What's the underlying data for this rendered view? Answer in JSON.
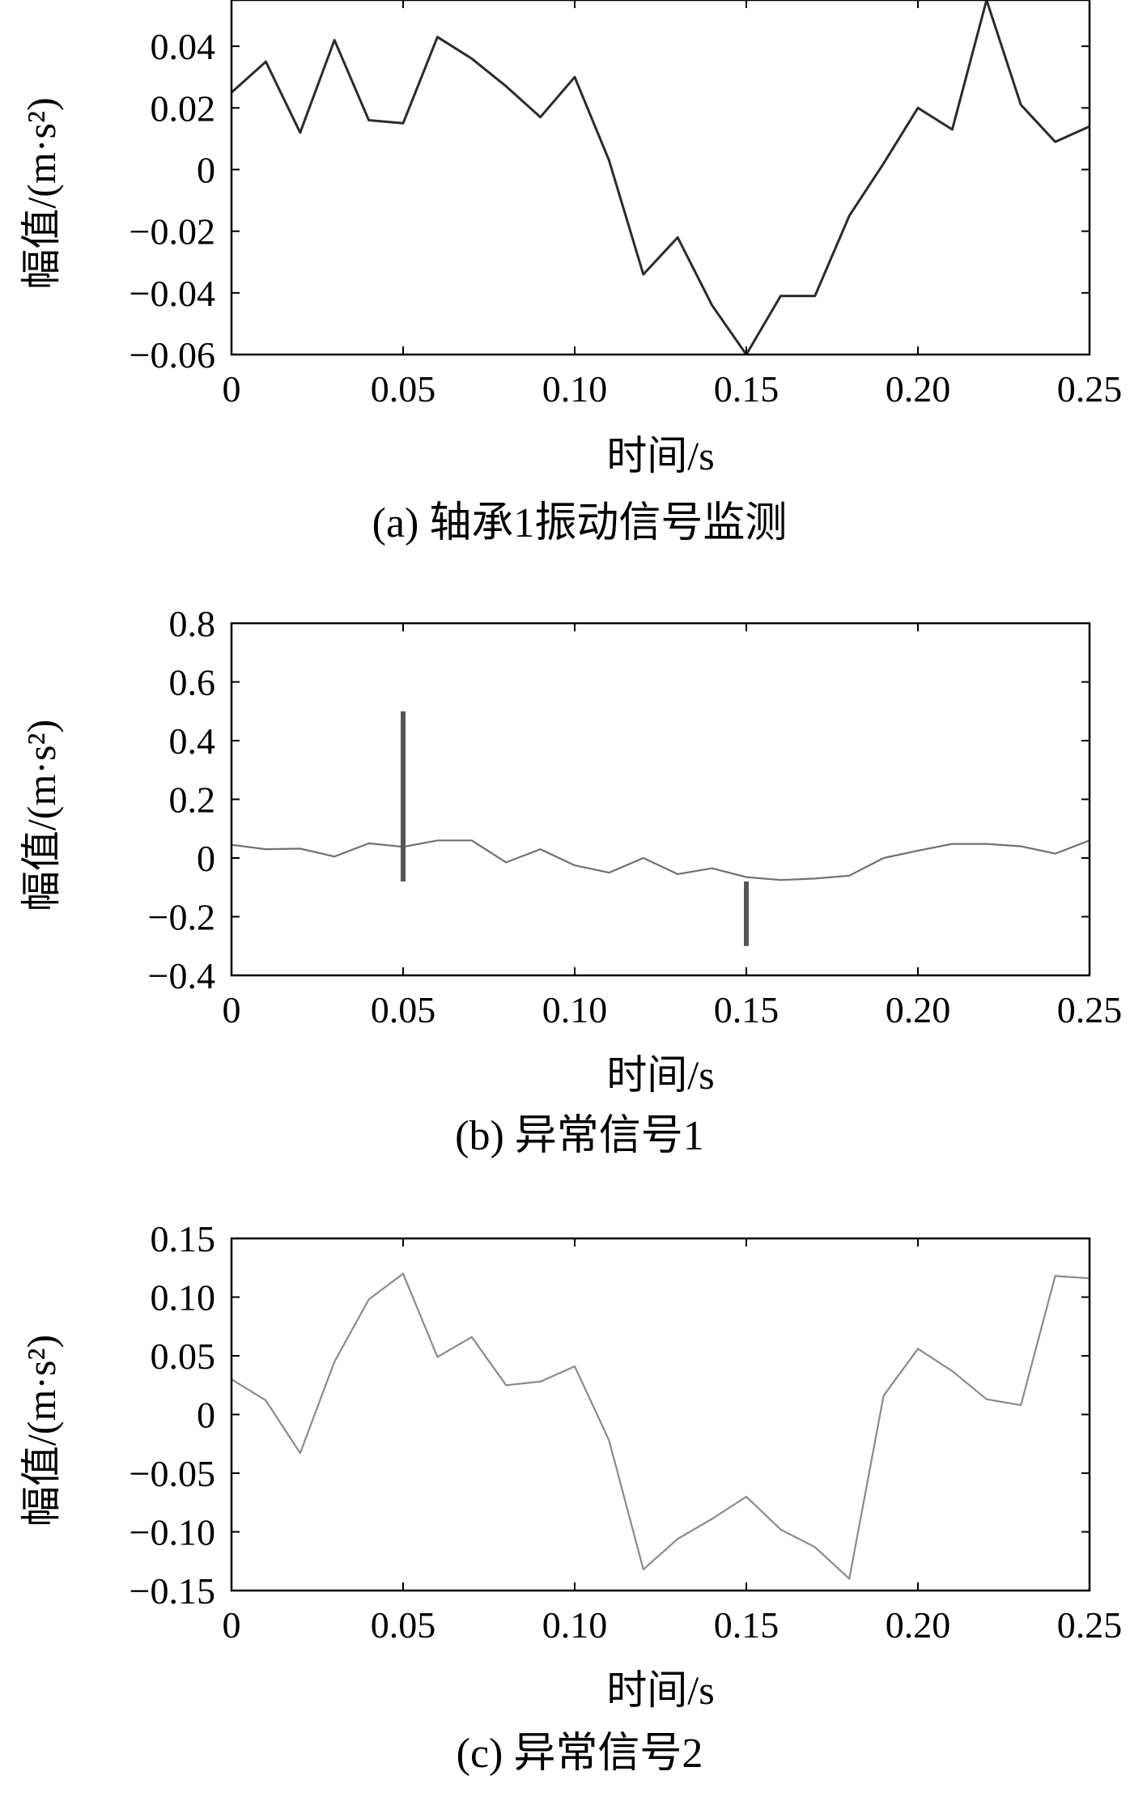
{
  "chart_data": [
    {
      "type": "line",
      "caption": "(a) 轴承1振动信号监测",
      "xlabel": "时间/s",
      "ylabel": "幅值/(m·s²)",
      "xlim": [
        0,
        0.25
      ],
      "ylim": [
        -0.06,
        0.055
      ],
      "xticks": [
        "0",
        "0.05",
        "0.10",
        "0.15",
        "0.20",
        "0.25"
      ],
      "xtick_values": [
        0,
        0.05,
        0.1,
        0.15,
        0.2,
        0.25
      ],
      "yticks": [
        "−0.06",
        "−0.04",
        "−0.02",
        "0",
        "0.02",
        "0.04"
      ],
      "ytick_values": [
        -0.06,
        -0.04,
        -0.02,
        0,
        0.02,
        0.04
      ],
      "grid": false,
      "series": [
        {
          "color": "#2b2b2b",
          "x": [
            0,
            0.01,
            0.02,
            0.03,
            0.04,
            0.05,
            0.06,
            0.07,
            0.08,
            0.09,
            0.1,
            0.11,
            0.12,
            0.13,
            0.14,
            0.15,
            0.16,
            0.17,
            0.18,
            0.19,
            0.2,
            0.21,
            0.22,
            0.23,
            0.24,
            0.25
          ],
          "y": [
            0.025,
            0.035,
            0.012,
            0.042,
            0.016,
            0.015,
            0.043,
            0.036,
            0.027,
            0.017,
            0.03,
            0.003,
            -0.034,
            -0.022,
            -0.044,
            -0.06,
            -0.041,
            -0.041,
            -0.015,
            0.002,
            0.02,
            0.013,
            0.055,
            0.021,
            0.009,
            0.014
          ]
        }
      ]
    },
    {
      "type": "line",
      "caption": "(b) 异常信号1",
      "xlabel": "时间/s",
      "ylabel": "幅值/(m·s²)",
      "xlim": [
        0,
        0.25
      ],
      "ylim": [
        -0.4,
        0.8
      ],
      "xticks": [
        "0",
        "0.05",
        "0.10",
        "0.15",
        "0.20",
        "0.25"
      ],
      "xtick_values": [
        0,
        0.05,
        0.1,
        0.15,
        0.2,
        0.25
      ],
      "yticks": [
        "−0.4",
        "−0.2",
        "0",
        "0.2",
        "0.4",
        "0.6",
        "0.8"
      ],
      "ytick_values": [
        -0.4,
        -0.2,
        0,
        0.2,
        0.4,
        0.6,
        0.8
      ],
      "grid": false,
      "series": [
        {
          "color": "#707070",
          "x": [
            0,
            0.01,
            0.02,
            0.03,
            0.04,
            0.05,
            0.06,
            0.07,
            0.08,
            0.09,
            0.1,
            0.11,
            0.12,
            0.13,
            0.14,
            0.15,
            0.16,
            0.17,
            0.18,
            0.19,
            0.2,
            0.21,
            0.22,
            0.23,
            0.24,
            0.25
          ],
          "y": [
            0.045,
            0.03,
            0.032,
            0.005,
            0.05,
            0.038,
            0.06,
            0.06,
            -0.015,
            0.03,
            -0.025,
            -0.05,
            0.0,
            -0.055,
            -0.035,
            -0.065,
            -0.075,
            -0.07,
            -0.06,
            0.0,
            0.025,
            0.048,
            0.048,
            0.04,
            0.015,
            0.06
          ]
        }
      ],
      "spikes": [
        {
          "x": 0.05,
          "y_from": -0.08,
          "y_to": 0.5,
          "color": "#555555"
        },
        {
          "x": 0.15,
          "y_from": -0.08,
          "y_to": -0.3,
          "color": "#555555"
        }
      ]
    },
    {
      "type": "line",
      "caption": "(c) 异常信号2",
      "xlabel": "时间/s",
      "ylabel": "幅值/(m·s²)",
      "xlim": [
        0,
        0.25
      ],
      "ylim": [
        -0.15,
        0.15
      ],
      "xticks": [
        "0",
        "0.05",
        "0.10",
        "0.15",
        "0.20",
        "0.25"
      ],
      "xtick_values": [
        0,
        0.05,
        0.1,
        0.15,
        0.2,
        0.25
      ],
      "yticks": [
        "−0.15",
        "−0.10",
        "−0.05",
        "0",
        "0.05",
        "0.10",
        "0.15"
      ],
      "ytick_values": [
        -0.15,
        -0.1,
        -0.05,
        0,
        0.05,
        0.1,
        0.15
      ],
      "grid": false,
      "series": [
        {
          "color": "#8a8a8a",
          "x": [
            0,
            0.01,
            0.02,
            0.03,
            0.04,
            0.05,
            0.06,
            0.07,
            0.08,
            0.09,
            0.1,
            0.11,
            0.12,
            0.13,
            0.14,
            0.15,
            0.16,
            0.17,
            0.18,
            0.19,
            0.2,
            0.21,
            0.22,
            0.23,
            0.24,
            0.25
          ],
          "y": [
            0.03,
            0.012,
            -0.033,
            0.045,
            0.098,
            0.12,
            0.049,
            0.066,
            0.025,
            0.028,
            0.041,
            -0.022,
            -0.132,
            -0.106,
            -0.089,
            -0.07,
            -0.098,
            -0.113,
            -0.14,
            0.016,
            0.056,
            0.037,
            0.013,
            0.008,
            0.118,
            0.116
          ]
        }
      ]
    }
  ]
}
